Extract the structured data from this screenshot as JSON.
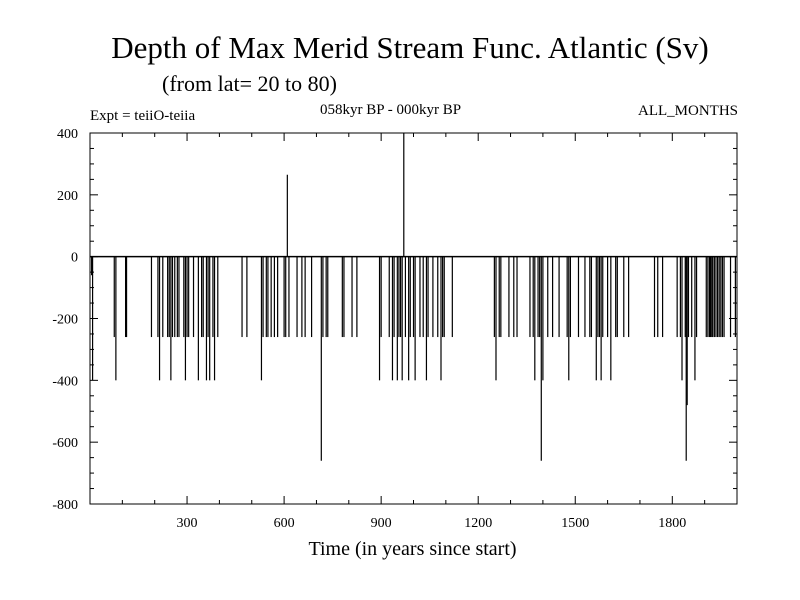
{
  "header": {
    "title": "Depth of Max Merid Stream Func. Atlantic (Sv)",
    "subtitle": "(from lat= 20 to 80)",
    "expt": "Expt = teiiO-teiia",
    "period": "058kyr BP - 000kyr BP",
    "months": "ALL_MONTHS"
  },
  "chart_data": {
    "type": "bar",
    "title": "Depth of Max Merid Stream Func. Atlantic (Sv)",
    "subtitle": "(from lat= 20 to 80)",
    "xlabel": "Time (in years since start)",
    "ylabel": "",
    "xlim": [
      0,
      2000
    ],
    "ylim": [
      -800,
      400
    ],
    "xticks": [
      300,
      600,
      900,
      1200,
      1500,
      1800
    ],
    "yticks": [
      -800,
      -600,
      -400,
      -200,
      0,
      200,
      400
    ],
    "grid": false,
    "legend": "none",
    "baseline": 0,
    "bar_color": "#000000",
    "x": [
      5,
      8,
      75,
      80,
      110,
      113,
      190,
      210,
      215,
      225,
      240,
      245,
      250,
      255,
      262,
      270,
      275,
      290,
      295,
      300,
      305,
      320,
      335,
      345,
      350,
      360,
      365,
      370,
      380,
      385,
      395,
      470,
      485,
      530,
      535,
      545,
      550,
      560,
      570,
      580,
      600,
      605,
      610,
      615,
      640,
      655,
      665,
      685,
      715,
      720,
      730,
      735,
      780,
      785,
      810,
      825,
      895,
      900,
      925,
      935,
      940,
      950,
      955,
      960,
      965,
      970,
      975,
      985,
      990,
      1000,
      1005,
      1020,
      1030,
      1040,
      1045,
      1060,
      1075,
      1085,
      1090,
      1095,
      1120,
      1250,
      1255,
      1265,
      1270,
      1295,
      1310,
      1320,
      1360,
      1370,
      1375,
      1385,
      1390,
      1395,
      1400,
      1415,
      1430,
      1450,
      1475,
      1480,
      1485,
      1510,
      1530,
      1545,
      1550,
      1565,
      1570,
      1575,
      1580,
      1585,
      1600,
      1610,
      1625,
      1630,
      1650,
      1665,
      1745,
      1755,
      1770,
      1815,
      1825,
      1830,
      1840,
      1843,
      1846,
      1850,
      1860,
      1870,
      1875,
      1905,
      1910,
      1915,
      1918,
      1922,
      1925,
      1930,
      1935,
      1940,
      1945,
      1950,
      1955,
      1960,
      1980,
      1995
    ],
    "values": [
      -60,
      -400,
      -260,
      -400,
      -260,
      -260,
      -260,
      -260,
      -400,
      -260,
      -260,
      -260,
      -400,
      -260,
      -260,
      -260,
      -260,
      -260,
      -400,
      -260,
      -260,
      -260,
      -400,
      -260,
      -260,
      -400,
      -260,
      -400,
      -260,
      -400,
      -260,
      -260,
      -260,
      -400,
      -260,
      -260,
      -260,
      -260,
      -260,
      -260,
      -260,
      -260,
      265,
      -260,
      -260,
      -260,
      -260,
      -260,
      -660,
      -260,
      -260,
      -260,
      -260,
      -260,
      -260,
      -260,
      -400,
      -260,
      -260,
      -400,
      -260,
      -400,
      -260,
      -260,
      -400,
      400,
      -260,
      -400,
      -260,
      -260,
      -400,
      -260,
      -260,
      -400,
      -260,
      -260,
      -260,
      -400,
      -260,
      -260,
      -260,
      -260,
      -400,
      -260,
      -260,
      -260,
      -260,
      -260,
      -260,
      -260,
      -400,
      -260,
      -260,
      -660,
      -400,
      -260,
      -260,
      -260,
      -260,
      -400,
      -260,
      -260,
      -260,
      -260,
      -260,
      -400,
      -260,
      -260,
      -400,
      -260,
      -260,
      -400,
      -260,
      -260,
      -260,
      -260,
      -260,
      -260,
      -260,
      -260,
      -260,
      -400,
      -260,
      -660,
      -480,
      -260,
      -260,
      -400,
      -260,
      -260,
      -260,
      -260,
      -260,
      -260,
      -260,
      -260,
      -260,
      -260,
      -260,
      -260,
      -260,
      -260,
      -260,
      -260
    ]
  }
}
